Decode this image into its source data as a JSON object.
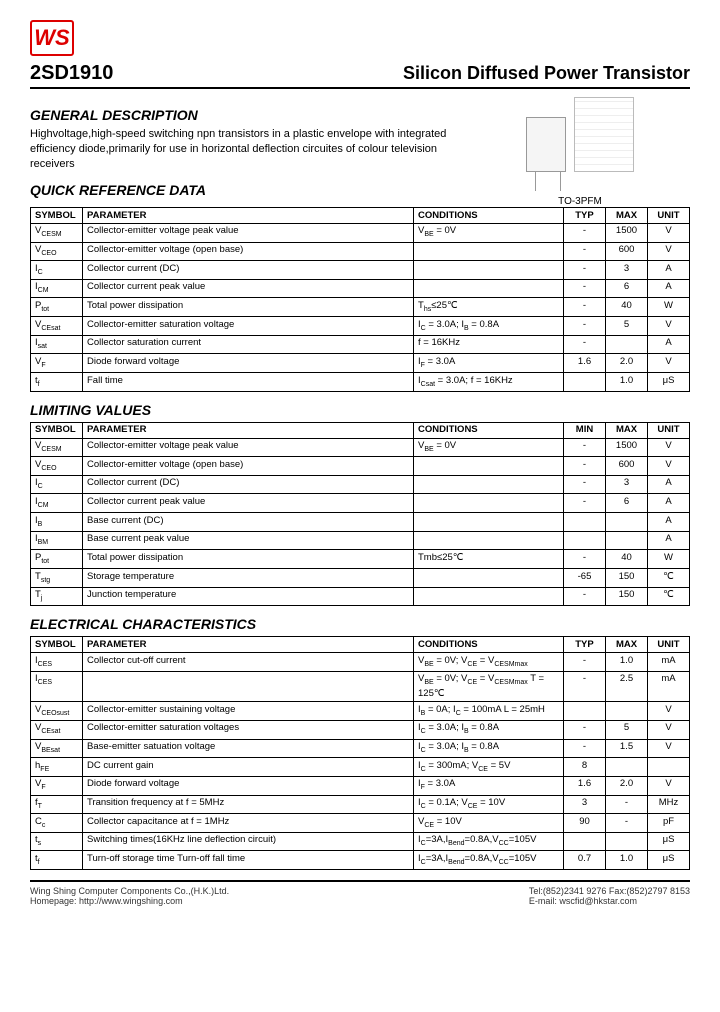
{
  "logo": "WS",
  "part_number": "2SD1910",
  "product_title": "Silicon Diffused Power Transistor",
  "general": {
    "title": "GENERAL DESCRIPTION",
    "text": "Highvoltage,high-speed switching npn transistors in a plastic envelope with integrated efficiency diode,primarily for use in horizontal deflection circuites of colour television receivers"
  },
  "package_label": "TO-3PFM",
  "quick_ref": {
    "title": "QUICK REFERENCE DATA",
    "headers": [
      "SYMBOL",
      "PARAMETER",
      "CONDITIONS",
      "TYP",
      "MAX",
      "UNIT"
    ],
    "rows": [
      [
        "V_CESM",
        "Collector-emitter voltage peak value",
        "V_BE = 0V",
        "-",
        "1500",
        "V"
      ],
      [
        "V_CEO",
        "Collector-emitter voltage (open base)",
        "",
        "-",
        "600",
        "V"
      ],
      [
        "I_C",
        "Collector current (DC)",
        "",
        "-",
        "3",
        "A"
      ],
      [
        "I_CM",
        "Collector current peak value",
        "",
        "-",
        "6",
        "A"
      ],
      [
        "P_tot",
        "Total power dissipation",
        "T_hs≤25℃",
        "-",
        "40",
        "W"
      ],
      [
        "V_CEsat",
        "Collector-emitter saturation voltage",
        "I_C = 3.0A; I_B = 0.8A",
        "-",
        "5",
        "V"
      ],
      [
        "I_sat",
        "Collector saturation current",
        "f = 16KHz",
        "-",
        "",
        "A"
      ],
      [
        "V_F",
        "Diode forward voltage",
        "I_F = 3.0A",
        "1.6",
        "2.0",
        "V"
      ],
      [
        "t_f",
        "Fall time",
        "I_Csat = 3.0A; f = 16KHz",
        "",
        "1.0",
        "μS"
      ]
    ]
  },
  "limiting": {
    "title": "LIMITING VALUES",
    "headers": [
      "SYMBOL",
      "PARAMETER",
      "CONDITIONS",
      "MIN",
      "MAX",
      "UNIT"
    ],
    "rows": [
      [
        "V_CESM",
        "Collector-emitter voltage peak value",
        "V_BE = 0V",
        "-",
        "1500",
        "V"
      ],
      [
        "V_CEO",
        "Collector-emitter voltage (open base)",
        "",
        "-",
        "600",
        "V"
      ],
      [
        "I_C",
        "Collector current (DC)",
        "",
        "-",
        "3",
        "A"
      ],
      [
        "I_CM",
        "Collector current peak value",
        "",
        "-",
        "6",
        "A"
      ],
      [
        "I_B",
        "Base current (DC)",
        "",
        "",
        "",
        "A"
      ],
      [
        "I_BM",
        "Base current peak value",
        "",
        "",
        "",
        "A"
      ],
      [
        "P_tot",
        "Total power dissipation",
        "Tmb≤25℃",
        "-",
        "40",
        "W"
      ],
      [
        "T_stg",
        "Storage temperature",
        "",
        "-65",
        "150",
        "℃"
      ],
      [
        "T_j",
        "Junction temperature",
        "",
        "-",
        "150",
        "℃"
      ]
    ]
  },
  "electrical": {
    "title": "ELECTRICAL CHARACTERISTICS",
    "headers": [
      "SYMBOL",
      "PARAMETER",
      "CONDITIONS",
      "TYP",
      "MAX",
      "UNIT"
    ],
    "rows": [
      [
        "I_CES",
        "Collector cut-off current",
        "V_BE = 0V; V_CE = V_CESMmax",
        "-",
        "1.0",
        "mA"
      ],
      [
        "I_CES",
        "",
        "V_BE = 0V; V_CE = V_CESMmax T = 125℃",
        "-",
        "2.5",
        "mA"
      ],
      [
        "V_CEOsust",
        "Collector-emitter sustaining voltage",
        "I_B = 0A; I_C = 100mA L = 25mH",
        "",
        "",
        "V"
      ],
      [
        "V_CEsat",
        "Collector-emitter saturation voltages",
        "I_C = 3.0A; I_B = 0.8A",
        "-",
        "5",
        "V"
      ],
      [
        "V_BEsat",
        "Base-emitter satuation voltage",
        "I_C = 3.0A; I_B = 0.8A",
        "-",
        "1.5",
        "V"
      ],
      [
        "h_FE",
        "DC current gain",
        "I_C = 300mA; V_CE = 5V",
        "8",
        "",
        ""
      ],
      [
        "V_F",
        "Diode forward voltage",
        "I_F = 3.0A",
        "1.6",
        "2.0",
        "V"
      ],
      [
        "f_T",
        "Transition frequency at  f = 5MHz",
        "I_C = 0.1A; V_CE = 10V",
        "3",
        "-",
        "MHz"
      ],
      [
        "C_c",
        "Collector capacitance at  f = 1MHz",
        "V_CE = 10V",
        "90",
        "-",
        "pF"
      ],
      [
        "t_s",
        "Switching times(16KHz line deflection circuit)",
        "I_C=3A,I_Bend=0.8A,V_CC=105V",
        "",
        "",
        "μS"
      ],
      [
        "t_f",
        "Turn-off storage time   Turn-off fall time",
        "I_C=3A,I_Bend=0.8A,V_CC=105V",
        "0.7",
        "1.0",
        "μS"
      ]
    ]
  },
  "footer": {
    "left1": "Wing Shing Computer Components Co.,(H.K.)Ltd.",
    "left2": "Homepage:    http://www.wingshing.com",
    "right1": "Tel:(852)2341 9276    Fax:(852)2797 8153",
    "right2": "E-mail:    wscfid@hkstar.com"
  },
  "colors": {
    "accent": "#d00",
    "border": "#000",
    "bg": "#ffffff"
  }
}
